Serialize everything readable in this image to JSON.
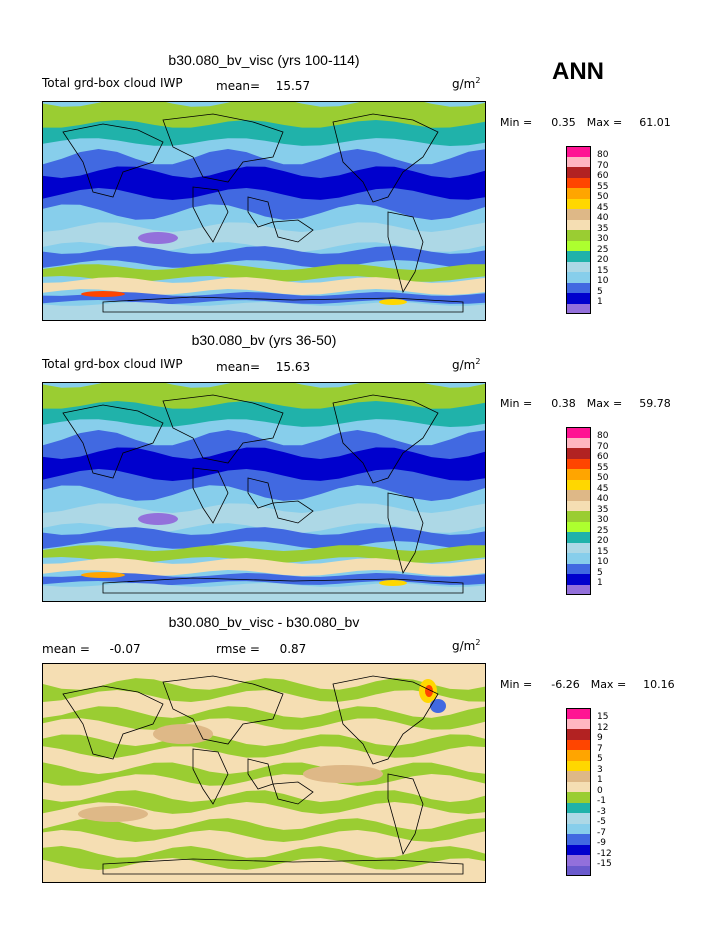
{
  "season_label": "ANN",
  "panels": [
    {
      "title": "b30.080_bv_visc (yrs 100-114)",
      "variable": "Total grd-box cloud IWP",
      "mean_label": "mean=",
      "mean_value": "15.57",
      "units": "g/m",
      "units_exp": "2",
      "min_label": "Min =",
      "min_value": "0.35",
      "max_label": "Max =",
      "max_value": "61.01",
      "colorbar_levels": [
        "80",
        "70",
        "60",
        "55",
        "50",
        "45",
        "40",
        "35",
        "30",
        "25",
        "20",
        "15",
        "10",
        "5",
        "1"
      ]
    },
    {
      "title": "b30.080_bv (yrs 36-50)",
      "variable": "Total grd-box cloud IWP",
      "mean_label": "mean=",
      "mean_value": "15.63",
      "units": "g/m",
      "units_exp": "2",
      "min_label": "Min =",
      "min_value": "0.38",
      "max_label": "Max =",
      "max_value": "59.78",
      "colorbar_levels": [
        "80",
        "70",
        "60",
        "55",
        "50",
        "45",
        "40",
        "35",
        "30",
        "25",
        "20",
        "15",
        "10",
        "5",
        "1"
      ]
    },
    {
      "title": "b30.080_bv_visc - b30.080_bv",
      "mean_label": "mean =",
      "mean_value": "-0.07",
      "rmse_label": "rmse =",
      "rmse_value": "0.87",
      "units": "g/m",
      "units_exp": "2",
      "min_label": "Min =",
      "min_value": "-6.26",
      "max_label": "Max =",
      "max_value": "10.16",
      "colorbar_levels": [
        "15",
        "12",
        "9",
        "7",
        "5",
        "3",
        "1",
        "0",
        "-1",
        "-3",
        "-5",
        "-7",
        "-9",
        "-12",
        "-15"
      ]
    }
  ],
  "colors": {
    "abs_scale": [
      "#ff1493",
      "#ffb6c1",
      "#b22222",
      "#ff4500",
      "#ffa500",
      "#ffd700",
      "#deb887",
      "#f5deb3",
      "#9acd32",
      "#adff2f",
      "#20b2aa",
      "#add8e6",
      "#87ceeb",
      "#4169e1",
      "#0000cd",
      "#9370db"
    ],
    "diff_scale": [
      "#ff1493",
      "#ffb6c1",
      "#b22222",
      "#ff4500",
      "#ffa500",
      "#ffd700",
      "#deb887",
      "#f5deb3",
      "#9acd32",
      "#20b2aa",
      "#add8e6",
      "#87ceeb",
      "#4169e1",
      "#0000cd",
      "#9370db",
      "#6a5acd"
    ]
  }
}
